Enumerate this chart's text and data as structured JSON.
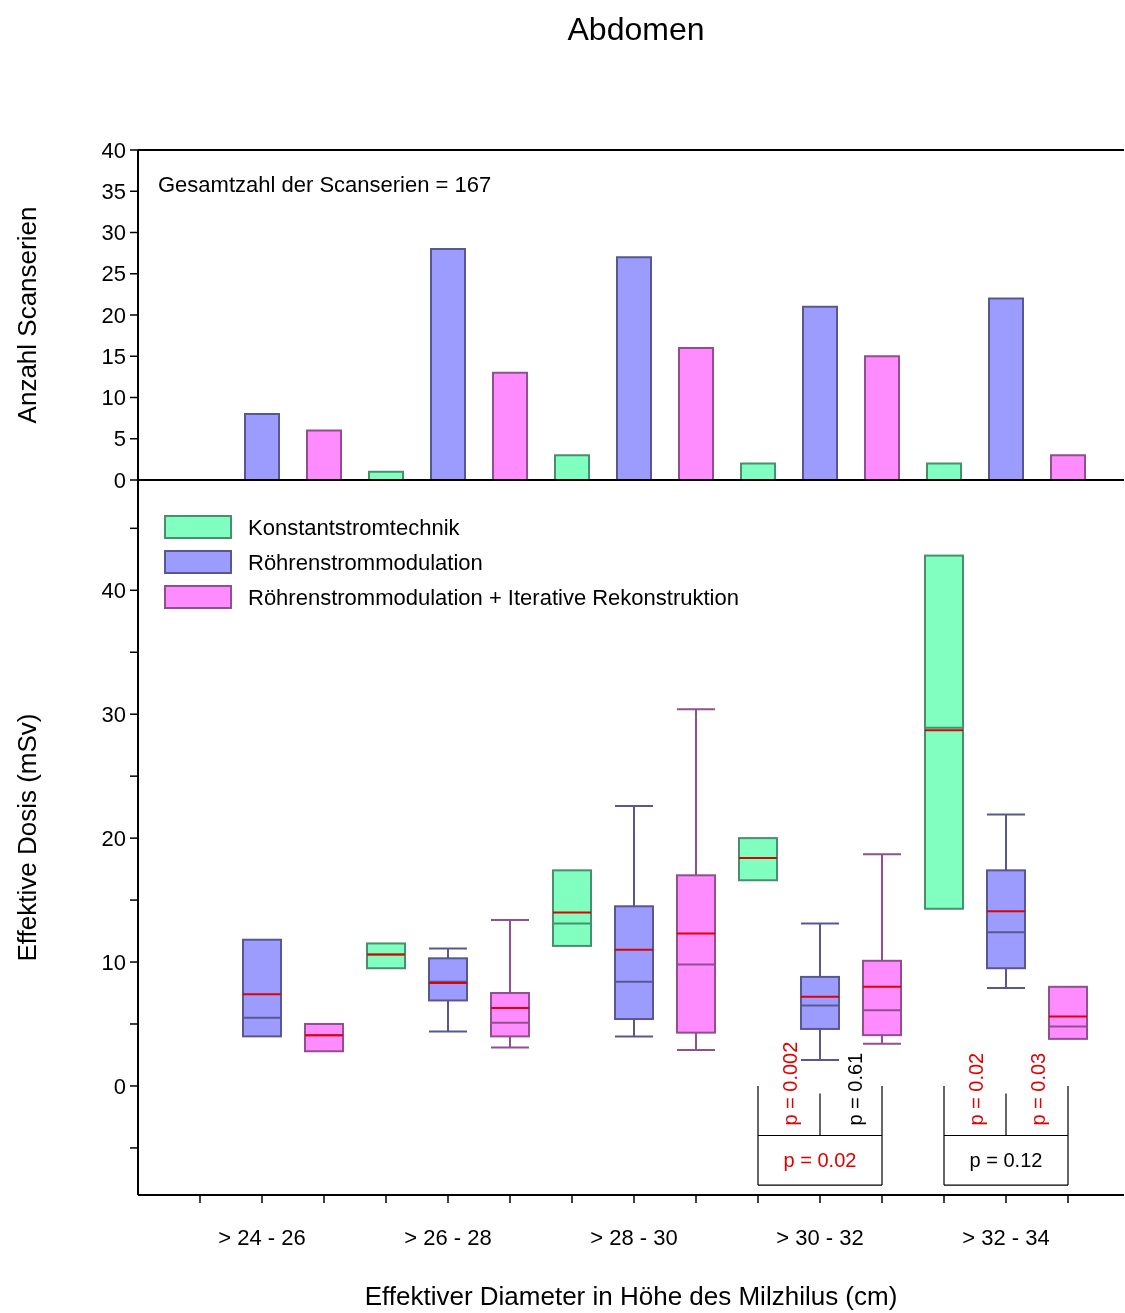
{
  "chart_data": [
    {
      "type": "bar",
      "title": "Abdomen",
      "ylabel": "Anzahl Scanserien",
      "categories": [
        "> 24 - 26",
        "> 26 - 28",
        "> 28 - 30",
        "> 30 - 32",
        "> 32 - 34"
      ],
      "series": [
        {
          "color": "#80ffc0",
          "values": [
            0,
            1,
            3,
            2,
            2
          ]
        },
        {
          "color": "#9c9cff",
          "values": [
            8,
            28,
            27,
            21,
            22
          ]
        },
        {
          "color": "#ff8cff",
          "values": [
            6,
            13,
            16,
            15,
            3
          ]
        }
      ],
      "ylim": [
        0,
        40
      ],
      "yticks": [
        0,
        5,
        10,
        15,
        20,
        25,
        30,
        35,
        40
      ],
      "tick_labels": "y",
      "legend": false,
      "grid": false,
      "annotations": [
        "Gesamtzahl der Scanserien = 167"
      ]
    },
    {
      "type": "box",
      "xlabel": "Effektiver Diameter in Höhe des Milzhilus (cm)",
      "ylabel": "Effektive Dosis (mSv)",
      "categories": [
        "> 24 - 26",
        "> 26 - 28",
        "> 28 - 30",
        "> 30 - 32",
        "> 32 - 34"
      ],
      "series": [
        {
          "name": "Konstantstromtechnik",
          "color": "#80ffc0",
          "boxes": [
            null,
            {
              "low": 9.5,
              "q1": 9.5,
              "median": 10.6,
              "q3": 11.5,
              "high": 11.5,
              "mean": 10.6
            },
            {
              "low": 11.3,
              "q1": 11.3,
              "median": 13.1,
              "q3": 17.4,
              "high": 17.4,
              "mean": 14.0
            },
            {
              "low": 16.6,
              "q1": 16.6,
              "median": 18.4,
              "q3": 20.0,
              "high": 20.0,
              "mean": 18.4
            },
            {
              "low": 14.3,
              "q1": 14.3,
              "median": 28.9,
              "q3": 42.8,
              "high": 42.8,
              "mean": 28.7
            }
          ]
        },
        {
          "name": "Röhrenstrommodulation",
          "color": "#9c9cff",
          "boxes": [
            {
              "low": 4.0,
              "q1": 4.0,
              "median": 5.5,
              "q3": 11.8,
              "high": 11.8,
              "mean": 7.4
            },
            {
              "low": 4.4,
              "q1": 6.9,
              "median": 8.4,
              "q3": 10.3,
              "high": 11.1,
              "mean": 8.3
            },
            {
              "low": 4.0,
              "q1": 5.4,
              "median": 8.4,
              "q3": 14.5,
              "high": 22.6,
              "mean": 11.0
            },
            {
              "low": 2.1,
              "q1": 4.6,
              "median": 6.5,
              "q3": 8.8,
              "high": 13.1,
              "mean": 7.2
            },
            {
              "low": 7.9,
              "q1": 9.5,
              "median": 12.4,
              "q3": 17.4,
              "high": 21.9,
              "mean": 14.1
            }
          ]
        },
        {
          "name": "Röhrenstrommodulation + Iterative Rekonstruktion",
          "color": "#ff8cff",
          "boxes": [
            {
              "low": 2.8,
              "q1": 2.8,
              "median": 4.1,
              "q3": 5.0,
              "high": 5.0,
              "mean": 4.1
            },
            {
              "low": 3.1,
              "q1": 4.0,
              "median": 5.1,
              "q3": 7.5,
              "high": 13.4,
              "mean": 6.3
            },
            {
              "low": 2.9,
              "q1": 4.3,
              "median": 9.8,
              "q3": 17.0,
              "high": 30.4,
              "mean": 12.3
            },
            {
              "low": 3.4,
              "q1": 4.1,
              "median": 6.1,
              "q3": 10.1,
              "high": 18.7,
              "mean": 8.0
            },
            {
              "low": 3.8,
              "q1": 3.8,
              "median": 4.8,
              "q3": 8.0,
              "high": 8.0,
              "mean": 5.6
            }
          ]
        }
      ],
      "ylim": [
        -8.8,
        48.9
      ],
      "yticks": [
        {
          "value": -5,
          "label": null
        },
        0,
        {
          "value": 5,
          "label": null
        },
        10,
        {
          "value": 15,
          "label": null
        },
        20,
        {
          "value": 25,
          "label": null
        },
        30,
        {
          "value": 35,
          "label": null
        },
        40,
        {
          "value": 45,
          "label": null
        }
      ],
      "legend": "top left",
      "grid": false,
      "annotations": [
        "p = 0.002",
        "p = 0.61",
        "p = 0.02",
        "p = 0.02",
        "p = 0.03",
        "p = 0.12"
      ]
    }
  ]
}
